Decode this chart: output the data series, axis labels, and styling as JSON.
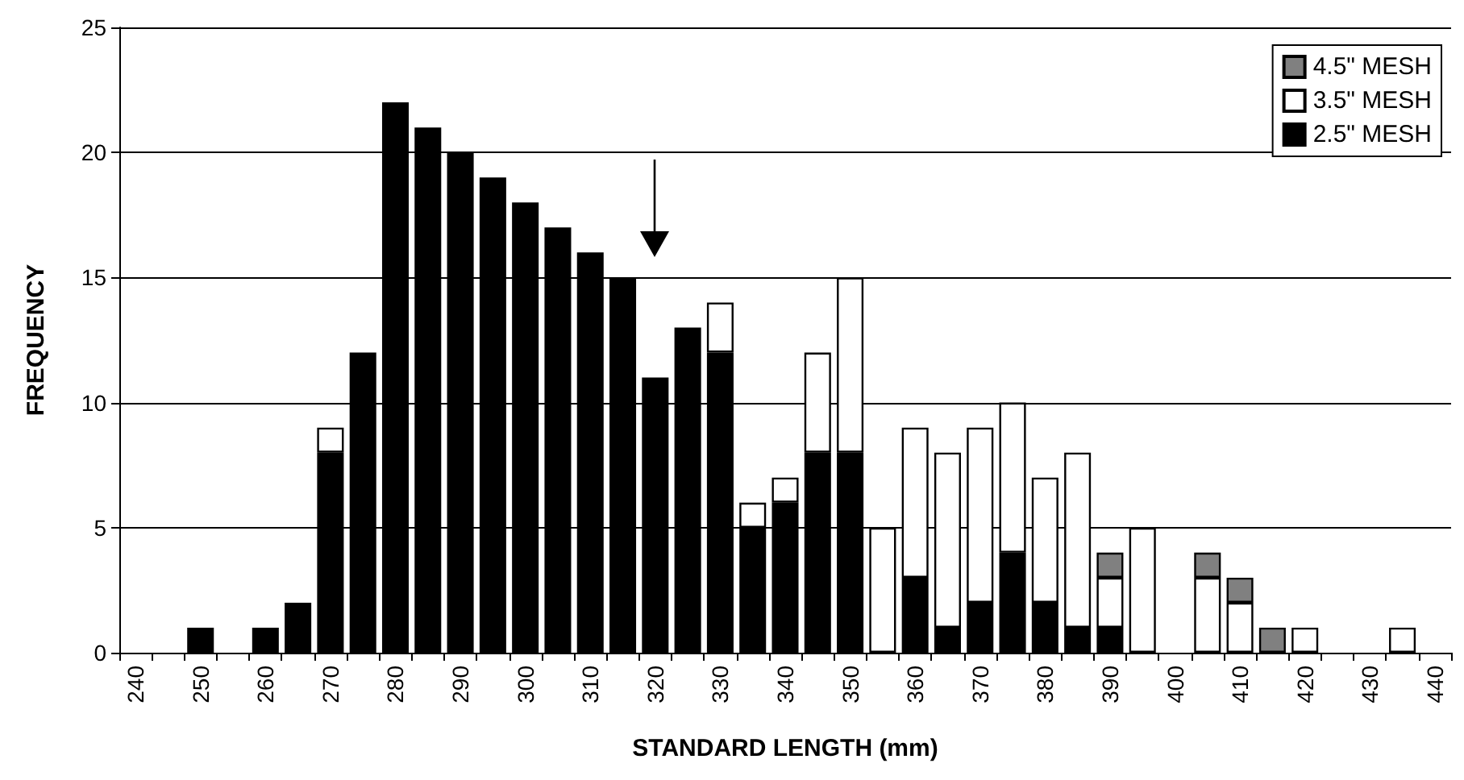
{
  "chart_data": {
    "type": "bar",
    "xlabel": "STANDARD LENGTH (mm)",
    "ylabel": "FREQUENCY",
    "categories": [
      "240",
      null,
      "250",
      null,
      "260",
      null,
      "270",
      null,
      "280",
      null,
      "290",
      null,
      "300",
      null,
      "310",
      null,
      "320",
      null,
      "330",
      null,
      "340",
      null,
      "350",
      null,
      "360",
      null,
      "370",
      null,
      "380",
      null,
      "390",
      null,
      "400",
      null,
      "410",
      null,
      "420",
      null,
      "430",
      null,
      "440"
    ],
    "series": [
      {
        "name": "2.5\" MESH",
        "color": "#000000",
        "values": [
          0,
          0,
          1,
          0,
          1,
          2,
          8,
          12,
          22,
          21,
          20,
          19,
          18,
          17,
          16,
          15,
          11,
          13,
          12,
          5,
          6,
          8,
          8,
          0,
          3,
          1,
          2,
          4,
          2,
          1,
          1,
          0,
          0,
          0,
          0,
          0,
          0,
          0,
          0,
          0,
          0
        ]
      },
      {
        "name": "3.5\" MESH",
        "color": "#ffffff",
        "values": [
          0,
          0,
          0,
          0,
          0,
          0,
          1,
          0,
          0,
          0,
          0,
          0,
          0,
          0,
          0,
          0,
          0,
          0,
          2,
          1,
          1,
          4,
          7,
          5,
          6,
          7,
          7,
          6,
          5,
          7,
          2,
          5,
          0,
          3,
          2,
          0,
          1,
          0,
          0,
          1,
          0
        ]
      },
      {
        "name": "4.5\" MESH",
        "color": "#808080",
        "values": [
          0,
          0,
          0,
          0,
          0,
          0,
          0,
          0,
          0,
          0,
          0,
          0,
          0,
          0,
          0,
          0,
          0,
          0,
          0,
          0,
          0,
          0,
          0,
          0,
          0,
          0,
          0,
          0,
          0,
          0,
          1,
          0,
          0,
          1,
          1,
          1,
          0,
          0,
          0,
          0,
          0
        ]
      }
    ],
    "stacked": true,
    "ylim": [
      0,
      25
    ],
    "yticks": [
      0,
      5,
      10,
      15,
      20,
      25
    ],
    "grid": "y",
    "legend": "top right"
  }
}
